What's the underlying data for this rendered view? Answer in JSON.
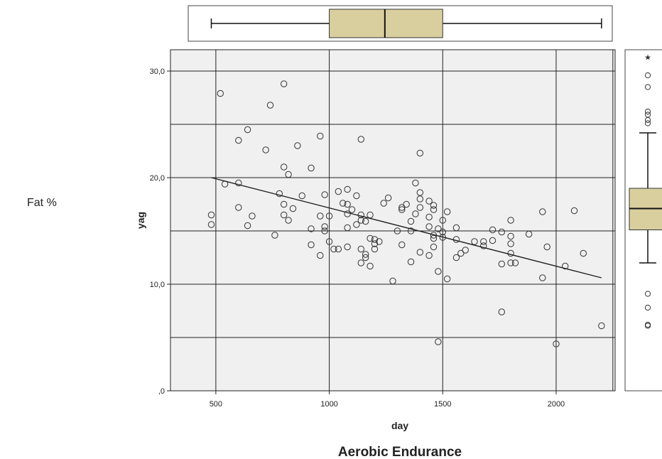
{
  "side_label": "Fat %",
  "caption": "Aerobic Endurance",
  "colors": {
    "plot_bg": "#f0f0f0",
    "grid": "#222222",
    "box_fill": "#d9cf9e",
    "point_stroke": "#333333",
    "fit_line": "#222222"
  },
  "chart_data": {
    "type": "scatter",
    "xlabel": "day",
    "ylabel": "yag",
    "xlim": [
      300,
      2260
    ],
    "ylim": [
      0,
      32
    ],
    "x_ticks": [
      500,
      1000,
      1500,
      2000
    ],
    "x_tick_labels": [
      "500",
      "1000",
      "1500",
      "2000"
    ],
    "y_ticks": [
      0,
      10,
      20,
      30
    ],
    "y_tick_labels": [
      ",0",
      "10,0",
      "20,0",
      "30,0"
    ],
    "x_grid": [
      500,
      1000,
      1500,
      2000,
      2250
    ],
    "y_grid": [
      5,
      10,
      15,
      20,
      25,
      30
    ],
    "grid": true,
    "fit_line": {
      "x": [
        480,
        2200
      ],
      "y": [
        20.0,
        10.6
      ]
    },
    "x_boxplot": {
      "min": 480,
      "q1": 1000,
      "median": 1245,
      "q3": 1500,
      "max": 2200
    },
    "y_boxplot": {
      "min": 12.0,
      "q1": 15.1,
      "median": 17.1,
      "q3": 19.0,
      "max": 24.2,
      "outliers": [
        25.1,
        25.4,
        25.9,
        26.2,
        28.5,
        29.6,
        9.1,
        7.8,
        6.2,
        6.1
      ],
      "extremes": [
        31.3
      ]
    },
    "points": [
      [
        480,
        16.5
      ],
      [
        480,
        15.6
      ],
      [
        520,
        27.9
      ],
      [
        540,
        19.4
      ],
      [
        600,
        23.5
      ],
      [
        600,
        19.5
      ],
      [
        600,
        17.2
      ],
      [
        640,
        24.5
      ],
      [
        640,
        15.5
      ],
      [
        660,
        16.4
      ],
      [
        720,
        22.6
      ],
      [
        740,
        26.8
      ],
      [
        760,
        14.6
      ],
      [
        780,
        18.5
      ],
      [
        800,
        28.8
      ],
      [
        800,
        21.0
      ],
      [
        800,
        17.5
      ],
      [
        800,
        16.5
      ],
      [
        820,
        20.3
      ],
      [
        820,
        16.0
      ],
      [
        840,
        17.1
      ],
      [
        860,
        23.0
      ],
      [
        880,
        18.3
      ],
      [
        920,
        20.9
      ],
      [
        920,
        15.2
      ],
      [
        920,
        13.7
      ],
      [
        960,
        23.9
      ],
      [
        960,
        16.4
      ],
      [
        960,
        12.7
      ],
      [
        980,
        18.4
      ],
      [
        980,
        15.4
      ],
      [
        980,
        15.0
      ],
      [
        1000,
        16.4
      ],
      [
        1000,
        14.0
      ],
      [
        1020,
        13.3
      ],
      [
        1040,
        18.7
      ],
      [
        1040,
        13.3
      ],
      [
        1060,
        17.6
      ],
      [
        1080,
        17.5
      ],
      [
        1080,
        18.9
      ],
      [
        1080,
        16.6
      ],
      [
        1080,
        15.3
      ],
      [
        1080,
        13.5
      ],
      [
        1100,
        17.0
      ],
      [
        1120,
        18.3
      ],
      [
        1120,
        15.6
      ],
      [
        1140,
        23.6
      ],
      [
        1140,
        16.5
      ],
      [
        1140,
        16.0
      ],
      [
        1140,
        13.3
      ],
      [
        1140,
        12.0
      ],
      [
        1160,
        15.9
      ],
      [
        1160,
        12.8
      ],
      [
        1160,
        12.5
      ],
      [
        1180,
        16.5
      ],
      [
        1180,
        14.3
      ],
      [
        1180,
        11.7
      ],
      [
        1200,
        14.2
      ],
      [
        1200,
        13.3
      ],
      [
        1200,
        13.8
      ],
      [
        1220,
        14.0
      ],
      [
        1240,
        17.6
      ],
      [
        1260,
        18.1
      ],
      [
        1280,
        10.3
      ],
      [
        1300,
        15.0
      ],
      [
        1320,
        17.2
      ],
      [
        1320,
        17.0
      ],
      [
        1320,
        13.7
      ],
      [
        1340,
        17.5
      ],
      [
        1360,
        15.9
      ],
      [
        1360,
        15.0
      ],
      [
        1360,
        12.1
      ],
      [
        1380,
        19.5
      ],
      [
        1380,
        16.6
      ],
      [
        1400,
        22.3
      ],
      [
        1400,
        18.6
      ],
      [
        1400,
        18.0
      ],
      [
        1400,
        17.2
      ],
      [
        1400,
        13.0
      ],
      [
        1440,
        17.8
      ],
      [
        1440,
        16.3
      ],
      [
        1440,
        15.4
      ],
      [
        1440,
        12.7
      ],
      [
        1460,
        17.4
      ],
      [
        1460,
        17.0
      ],
      [
        1460,
        14.6
      ],
      [
        1460,
        14.3
      ],
      [
        1460,
        13.5
      ],
      [
        1480,
        15.2
      ],
      [
        1480,
        11.2
      ],
      [
        1480,
        4.6
      ],
      [
        1500,
        16.0
      ],
      [
        1500,
        14.9
      ],
      [
        1500,
        14.4
      ],
      [
        1520,
        16.8
      ],
      [
        1520,
        10.5
      ],
      [
        1560,
        15.3
      ],
      [
        1560,
        14.2
      ],
      [
        1560,
        12.5
      ],
      [
        1580,
        12.9
      ],
      [
        1600,
        13.2
      ],
      [
        1640,
        14.0
      ],
      [
        1680,
        14.0
      ],
      [
        1680,
        13.6
      ],
      [
        1720,
        15.1
      ],
      [
        1720,
        14.1
      ],
      [
        1760,
        14.9
      ],
      [
        1760,
        11.9
      ],
      [
        1760,
        7.4
      ],
      [
        1800,
        16.0
      ],
      [
        1800,
        14.5
      ],
      [
        1800,
        13.8
      ],
      [
        1800,
        12.9
      ],
      [
        1800,
        12.0
      ],
      [
        1820,
        12.0
      ],
      [
        1880,
        14.7
      ],
      [
        1940,
        16.8
      ],
      [
        1940,
        10.6
      ],
      [
        1960,
        13.5
      ],
      [
        2000,
        4.4
      ],
      [
        2040,
        11.7
      ],
      [
        2080,
        16.9
      ],
      [
        2120,
        12.9
      ],
      [
        2200,
        6.1
      ]
    ]
  }
}
